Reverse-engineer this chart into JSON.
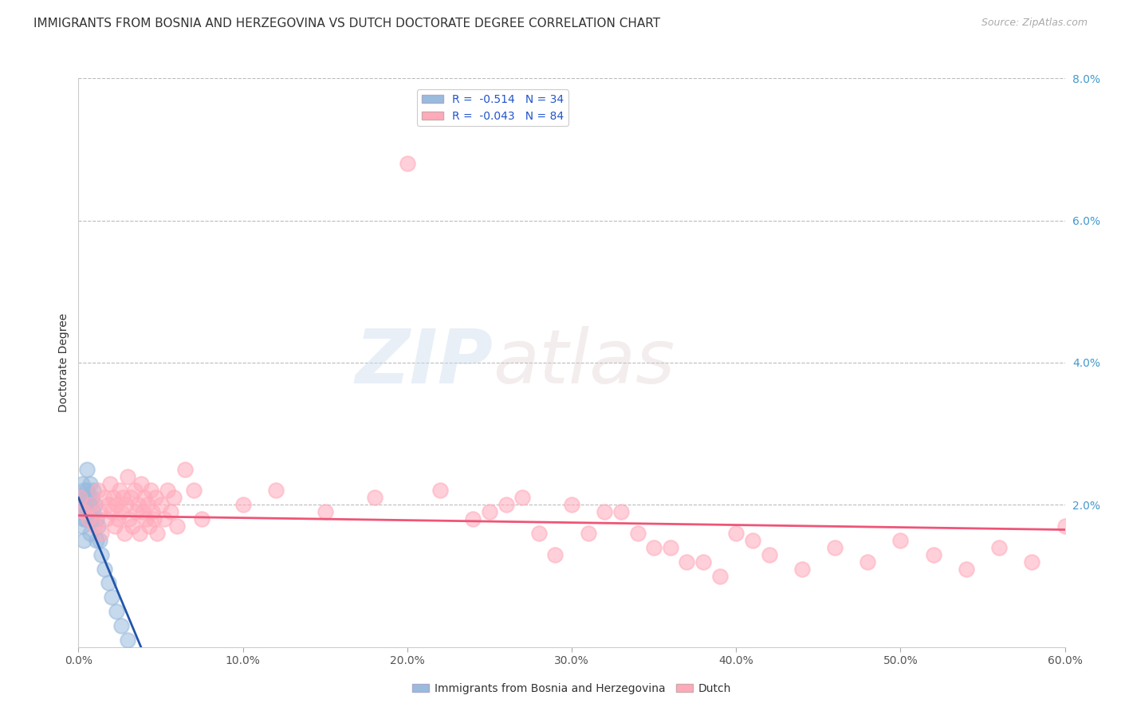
{
  "title": "IMMIGRANTS FROM BOSNIA AND HERZEGOVINA VS DUTCH DOCTORATE DEGREE CORRELATION CHART",
  "source": "Source: ZipAtlas.com",
  "ylabel": "Doctorate Degree",
  "legend_label1": "Immigrants from Bosnia and Herzegovina",
  "legend_label2": "Dutch",
  "legend_R1": "R =  -0.514",
  "legend_N1": "N = 34",
  "legend_R2": "R =  -0.043",
  "legend_N2": "N = 84",
  "color_blue": "#99BBDD",
  "color_pink": "#FFAABB",
  "color_blue_line": "#2255AA",
  "color_pink_line": "#EE5577",
  "xlim": [
    0.0,
    0.6
  ],
  "ylim": [
    0.0,
    0.08
  ],
  "xtick_labels": [
    "0.0%",
    "10.0%",
    "20.0%",
    "30.0%",
    "40.0%",
    "50.0%",
    "60.0%"
  ],
  "xtick_values": [
    0.0,
    0.1,
    0.2,
    0.3,
    0.4,
    0.5,
    0.6
  ],
  "ytick_labels": [
    "2.0%",
    "4.0%",
    "6.0%",
    "8.0%"
  ],
  "ytick_values": [
    0.02,
    0.04,
    0.06,
    0.08
  ],
  "ytick_labels_right": [
    "2.0%",
    "4.0%",
    "6.0%",
    "8.0%"
  ],
  "blue_x": [
    0.001,
    0.001,
    0.002,
    0.002,
    0.002,
    0.003,
    0.003,
    0.003,
    0.004,
    0.004,
    0.005,
    0.005,
    0.005,
    0.006,
    0.006,
    0.007,
    0.007,
    0.007,
    0.008,
    0.008,
    0.009,
    0.009,
    0.01,
    0.011,
    0.011,
    0.012,
    0.013,
    0.014,
    0.016,
    0.018,
    0.02,
    0.023,
    0.026,
    0.03
  ],
  "blue_y": [
    0.021,
    0.019,
    0.023,
    0.02,
    0.017,
    0.022,
    0.018,
    0.015,
    0.021,
    0.018,
    0.025,
    0.022,
    0.019,
    0.021,
    0.018,
    0.023,
    0.02,
    0.016,
    0.021,
    0.018,
    0.022,
    0.019,
    0.02,
    0.018,
    0.015,
    0.017,
    0.015,
    0.013,
    0.011,
    0.009,
    0.007,
    0.005,
    0.003,
    0.001
  ],
  "blue_line_x": [
    0.0,
    0.038
  ],
  "blue_line_y": [
    0.021,
    0.0
  ],
  "pink_x": [
    0.001,
    0.003,
    0.006,
    0.008,
    0.01,
    0.012,
    0.013,
    0.014,
    0.016,
    0.017,
    0.018,
    0.019,
    0.02,
    0.021,
    0.022,
    0.023,
    0.024,
    0.025,
    0.026,
    0.027,
    0.028,
    0.029,
    0.03,
    0.031,
    0.032,
    0.033,
    0.034,
    0.035,
    0.036,
    0.037,
    0.038,
    0.039,
    0.04,
    0.041,
    0.042,
    0.043,
    0.044,
    0.045,
    0.046,
    0.047,
    0.048,
    0.05,
    0.052,
    0.054,
    0.056,
    0.058,
    0.06,
    0.065,
    0.07,
    0.075,
    0.1,
    0.12,
    0.15,
    0.18,
    0.2,
    0.22,
    0.24,
    0.26,
    0.28,
    0.3,
    0.32,
    0.34,
    0.36,
    0.38,
    0.4,
    0.42,
    0.44,
    0.46,
    0.48,
    0.5,
    0.52,
    0.54,
    0.56,
    0.58,
    0.6,
    0.25,
    0.27,
    0.29,
    0.31,
    0.33,
    0.35,
    0.37,
    0.39,
    0.41
  ],
  "pink_y": [
    0.021,
    0.019,
    0.018,
    0.02,
    0.017,
    0.022,
    0.019,
    0.016,
    0.021,
    0.018,
    0.02,
    0.023,
    0.019,
    0.021,
    0.017,
    0.02,
    0.018,
    0.022,
    0.019,
    0.021,
    0.016,
    0.02,
    0.024,
    0.018,
    0.021,
    0.017,
    0.022,
    0.019,
    0.02,
    0.016,
    0.023,
    0.019,
    0.021,
    0.018,
    0.02,
    0.017,
    0.022,
    0.019,
    0.018,
    0.021,
    0.016,
    0.02,
    0.018,
    0.022,
    0.019,
    0.021,
    0.017,
    0.025,
    0.022,
    0.018,
    0.02,
    0.022,
    0.019,
    0.021,
    0.068,
    0.022,
    0.018,
    0.02,
    0.016,
    0.02,
    0.019,
    0.016,
    0.014,
    0.012,
    0.016,
    0.013,
    0.011,
    0.014,
    0.012,
    0.015,
    0.013,
    0.011,
    0.014,
    0.012,
    0.017,
    0.019,
    0.021,
    0.013,
    0.016,
    0.019,
    0.014,
    0.012,
    0.01,
    0.015
  ],
  "pink_line_x": [
    0.0,
    0.6
  ],
  "pink_line_y": [
    0.0185,
    0.0165
  ],
  "watermark_zip": "ZIP",
  "watermark_atlas": "atlas",
  "background_color": "#FFFFFF",
  "grid_color": "#BBBBBB",
  "title_fontsize": 11,
  "axis_label_fontsize": 10,
  "tick_fontsize": 10,
  "legend_fontsize": 10,
  "source_fontsize": 9,
  "marker_size": 180,
  "marker_alpha": 0.55,
  "line_width": 2.0
}
